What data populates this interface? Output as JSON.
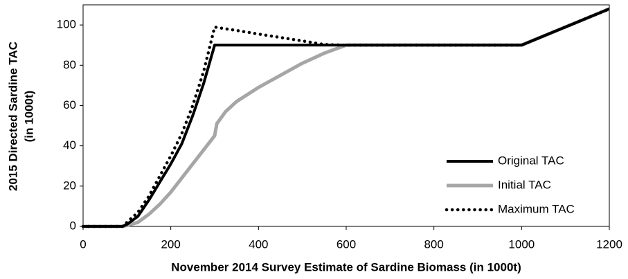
{
  "chart_data": {
    "type": "line",
    "xlabel": "November 2014 Survey Estimate of Sardine Biomass (in 1000t)",
    "ylabel": [
      "2015 Directed Sardine TAC",
      "(in 1000t)"
    ],
    "x": [
      0,
      50,
      75,
      90,
      100,
      125,
      150,
      175,
      200,
      225,
      250,
      275,
      300,
      305,
      325,
      350,
      400,
      450,
      500,
      550,
      600,
      700,
      800,
      900,
      1000,
      1100,
      1200
    ],
    "series": [
      {
        "name": "Original TAC",
        "color": "#000000",
        "style": "solid",
        "values": [
          0,
          0,
          0,
          0,
          1,
          5,
          13,
          22,
          31,
          41,
          55,
          71,
          90,
          90,
          90,
          90,
          90,
          90,
          90,
          90,
          90,
          90,
          90,
          90,
          90,
          99,
          108
        ]
      },
      {
        "name": "Initial TAC",
        "color": "#a6a6a6",
        "style": "solid",
        "values": [
          0,
          0,
          0,
          0,
          0.5,
          2,
          6,
          11,
          17,
          24,
          31,
          38,
          45,
          51,
          57,
          62,
          69,
          75,
          81,
          86,
          90,
          90,
          90,
          90,
          90,
          99,
          108
        ]
      },
      {
        "name": "Maximum TAC",
        "color": "#000000",
        "style": "dotted",
        "values": [
          0,
          0,
          0,
          0,
          2,
          7,
          15,
          25,
          35,
          46,
          60,
          77,
          99,
          98.8,
          98.1,
          97.3,
          95.5,
          93.8,
          92.1,
          90.3,
          90,
          90,
          90,
          90,
          90,
          99,
          108
        ]
      }
    ],
    "xlim": [
      0,
      1200
    ],
    "xticks": [
      0,
      200,
      400,
      600,
      800,
      1000,
      1200
    ],
    "ylim": [
      0,
      110
    ],
    "yticks": [
      0,
      20,
      40,
      60,
      80,
      100
    ],
    "legend": "lower right"
  }
}
